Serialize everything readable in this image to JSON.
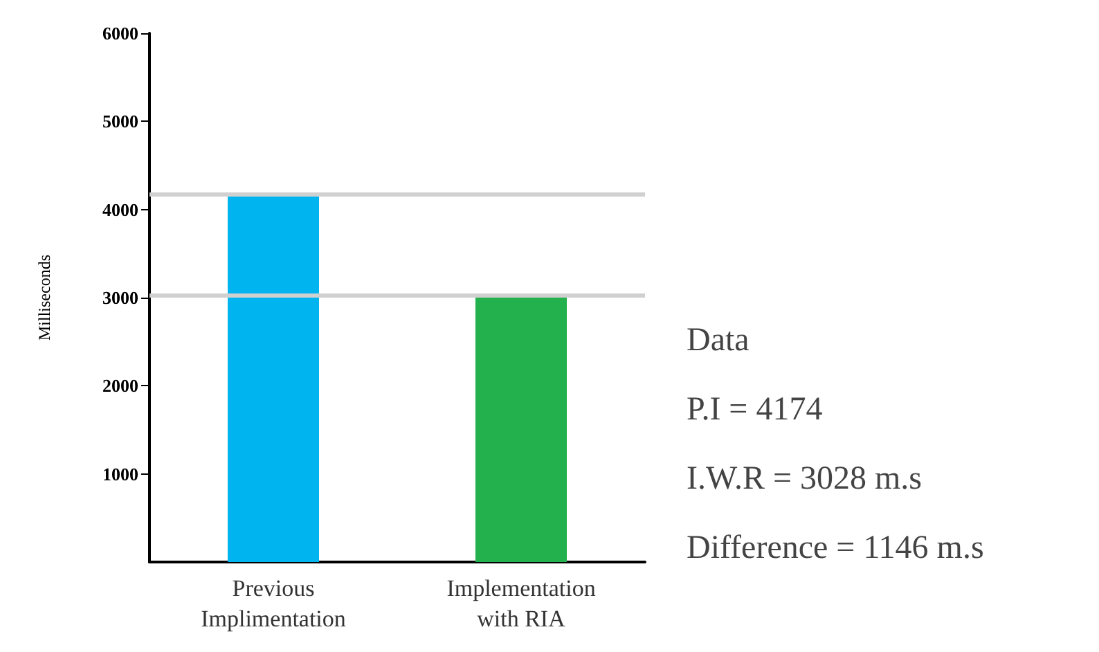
{
  "chart_data": {
    "type": "bar",
    "categories": [
      "Previous\nImplimentation",
      "Implementation\nwith RIA"
    ],
    "values": [
      4174,
      3028
    ],
    "colors": [
      "#00b4f0",
      "#22b14c"
    ],
    "ylabel": "Milliseconds",
    "ylim": [
      0,
      6000
    ],
    "yticks": [
      1000,
      2000,
      3000,
      4000,
      5000,
      6000
    ],
    "ref_lines": [
      {
        "axis": "y",
        "value": 4174,
        "label": null,
        "color": "#d0d0d0"
      },
      {
        "axis": "y",
        "value": 3028,
        "label": null,
        "color": "#d0d0d0"
      }
    ],
    "annotations": [
      "Data",
      "P.I = 4174",
      "I.W.R = 3028 m.s",
      "Difference = 1146 m.s"
    ],
    "grid": false
  }
}
